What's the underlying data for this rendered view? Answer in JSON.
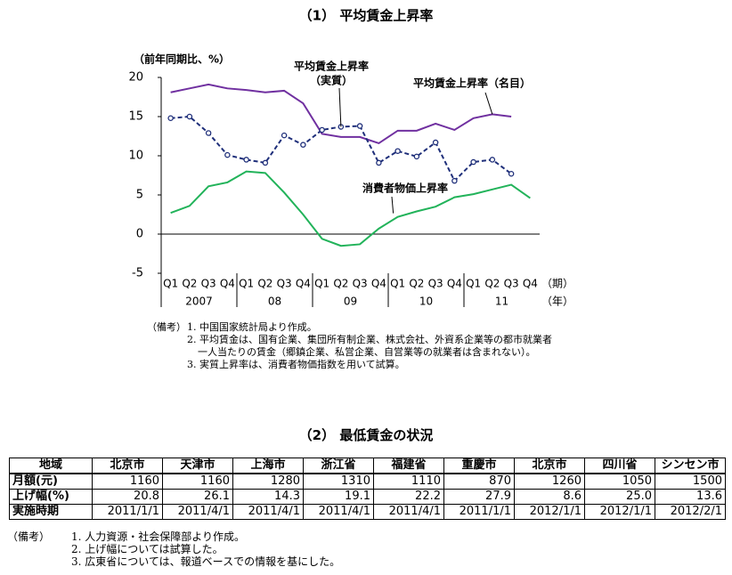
{
  "chart_data": {
    "type": "line",
    "title": "（1） 平均賃金上昇率",
    "ylabel": "（前年同期比、%）",
    "categories": [
      "Q1",
      "Q2",
      "Q3",
      "Q4",
      "Q1",
      "Q2",
      "Q3",
      "Q4",
      "Q1",
      "Q2",
      "Q3",
      "Q4",
      "Q1",
      "Q2",
      "Q3",
      "Q4",
      "Q1",
      "Q2",
      "Q3",
      "Q4"
    ],
    "years": [
      "2007",
      "08",
      "09",
      "10",
      "11"
    ],
    "period_label": "（期）",
    "year_label": "（年）",
    "ylim": [
      -5,
      20
    ],
    "yticks": [
      -5,
      0,
      5,
      10,
      15,
      20
    ],
    "series": [
      {
        "name": "平均賃金上昇率（名目）",
        "color": "#7030a0",
        "style": "solid",
        "markers": false,
        "values": [
          18.1,
          18.6,
          19.1,
          18.6,
          18.4,
          18.1,
          18.3,
          16.7,
          12.8,
          12.4,
          12.4,
          11.6,
          13.2,
          13.2,
          14.1,
          13.3,
          14.8,
          15.3,
          15.0,
          null
        ]
      },
      {
        "name": "平均賃金上昇率",
        "color": "#1f2f7a",
        "style": "dashed",
        "markers": true,
        "values": [
          14.8,
          15.0,
          12.9,
          10.1,
          9.5,
          9.1,
          12.6,
          11.4,
          13.3,
          13.7,
          13.8,
          9.1,
          10.6,
          9.9,
          11.7,
          6.8,
          9.2,
          9.5,
          7.7,
          null
        ]
      },
      {
        "name": "消費者物価上昇率",
        "color": "#22b35a",
        "style": "solid",
        "markers": false,
        "values": [
          2.7,
          3.6,
          6.1,
          6.6,
          8.0,
          7.8,
          5.3,
          2.5,
          -0.6,
          -1.5,
          -1.3,
          0.7,
          2.2,
          2.9,
          3.5,
          4.7,
          5.1,
          5.7,
          6.3,
          4.6
        ]
      }
    ],
    "annotations": [
      "（実質）"
    ],
    "notes": [
      "（備考）",
      "1. 中国国家統計局より作成。",
      "2. 平均賃金は、国有企業、集団所有制企業、株式会社、外資系企業等の都市就業者",
      "一人当たりの賃金（郷鎮企業、私営企業、自営業等の就業者は含まれない）。",
      "3. 実質上昇率は、消費者物価指数を用いて試算。"
    ]
  },
  "table": {
    "title": "（2） 最低賃金の状況",
    "header": [
      "地域",
      "北京市",
      "天津市",
      "上海市",
      "浙江省",
      "福建省",
      "重慶市",
      "北京市",
      "四川省",
      "シンセン市"
    ],
    "rows": [
      [
        "月額(元)",
        "1160",
        "1160",
        "1280",
        "1310",
        "1110",
        "870",
        "1260",
        "1050",
        "1500"
      ],
      [
        "上げ幅(%)",
        "20.8",
        "26.1",
        "14.3",
        "19.1",
        "22.2",
        "27.9",
        "8.6",
        "25.0",
        "13.6"
      ],
      [
        "実施時期",
        "2011/1/1",
        "2011/4/1",
        "2011/4/1",
        "2011/4/1",
        "2011/4/1",
        "2011/1/1",
        "2012/1/1",
        "2012/1/1",
        "2012/2/1"
      ]
    ],
    "notes": [
      "（備考）",
      "1. 人力資源・社会保障部より作成。",
      "2. 上げ幅については試算した。",
      "3. 広東省については、報道ベースでの情報を基にした。"
    ]
  }
}
